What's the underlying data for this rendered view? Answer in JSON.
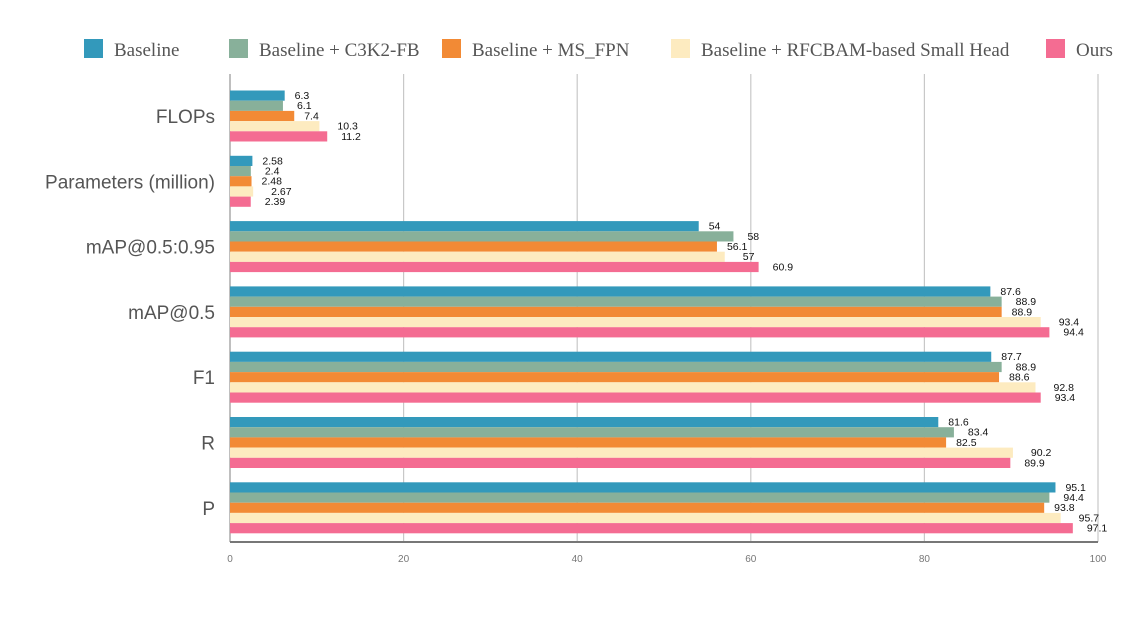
{
  "chart_data": {
    "type": "bar",
    "orientation": "horizontal",
    "title": "",
    "xlabel": "",
    "ylabel": "",
    "xlim": [
      0,
      100
    ],
    "xticks": [
      "0",
      "20",
      "40",
      "60",
      "80",
      "100"
    ],
    "grid": true,
    "legend_position": "top",
    "categories": [
      "FLOPs",
      "Parameters (million)",
      "mAP@0.5:0.95",
      "mAP@0.5",
      "F1",
      "R",
      "P"
    ],
    "series": [
      {
        "name": "Baseline",
        "color": "#3399bb",
        "values": [
          6.3,
          2.58,
          54,
          87.6,
          87.7,
          81.6,
          95.1
        ]
      },
      {
        "name": "Baseline + C3K2-FB",
        "color": "#88b09a",
        "values": [
          6.1,
          2.4,
          58,
          88.9,
          88.9,
          83.4,
          94.4
        ]
      },
      {
        "name": "Baseline + MS_FPN",
        "color": "#f28a35",
        "values": [
          7.4,
          2.48,
          56.1,
          88.9,
          88.6,
          82.5,
          93.8
        ]
      },
      {
        "name": "Baseline + RFCBAM-based Small Head",
        "color": "#fdebc0",
        "values": [
          10.3,
          2.67,
          57,
          93.4,
          92.8,
          90.2,
          95.7
        ]
      },
      {
        "name": "Ours",
        "color": "#f46c92",
        "values": [
          11.2,
          2.39,
          60.9,
          94.4,
          93.4,
          89.9,
          97.1
        ]
      }
    ]
  }
}
